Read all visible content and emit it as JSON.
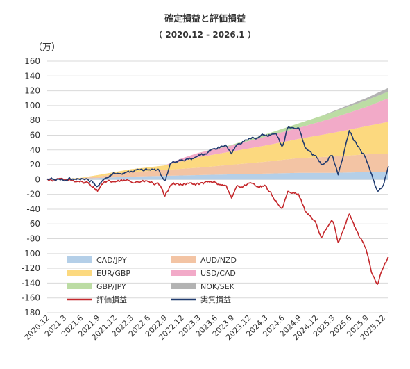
{
  "chart_data": {
    "type": "area",
    "title": "確定損益と評価損益",
    "subtitle": "（ 2020.12 - 2026.1 ）",
    "unit_label": "（万）",
    "ylim": [
      -180,
      160
    ],
    "ytick_step": 20,
    "x_start": "2020.12",
    "x_end": "2026.1",
    "x_ticks": [
      "2020.12",
      "2021.3",
      "2021.6",
      "2021.9",
      "2021.12",
      "2022.3",
      "2022.6",
      "2022.9",
      "2022.12",
      "2023.3",
      "2023.6",
      "2023.9",
      "2023.12",
      "2024.3",
      "2024.6",
      "2024.9",
      "2024.12",
      "2025.3",
      "2025.6",
      "2025.9",
      "2025.12"
    ],
    "grid": true,
    "stacked_order": [
      "CAD/JPY",
      "AUD/NZD",
      "EUR/GBP",
      "USD/CAD",
      "GBP/JPY",
      "NOK/SEK"
    ],
    "series": [
      {
        "name": "CAD/JPY",
        "kind": "area",
        "color": "#b4cfe8",
        "points": [
          [
            "2020.12",
            0
          ],
          [
            "2021.9",
            2
          ],
          [
            "2022.3",
            4
          ],
          [
            "2022.9",
            5
          ],
          [
            "2023.3",
            6
          ],
          [
            "2023.9",
            7
          ],
          [
            "2024.3",
            8
          ],
          [
            "2024.9",
            9
          ],
          [
            "2025.3",
            9
          ],
          [
            "2025.9",
            10
          ],
          [
            "2026.1",
            10
          ]
        ]
      },
      {
        "name": "AUD/NZD",
        "kind": "area",
        "color": "#f3c4a4",
        "points": [
          [
            "2020.12",
            0
          ],
          [
            "2021.6",
            0.5
          ],
          [
            "2021.9",
            2
          ],
          [
            "2022.3",
            6
          ],
          [
            "2022.9",
            8
          ],
          [
            "2023.3",
            10
          ],
          [
            "2023.9",
            13
          ],
          [
            "2024.3",
            16
          ],
          [
            "2024.9",
            20
          ],
          [
            "2025.3",
            22
          ],
          [
            "2025.9",
            24
          ],
          [
            "2026.1",
            25
          ]
        ]
      },
      {
        "name": "EUR/GBP",
        "kind": "area",
        "color": "#fcd97f",
        "points": [
          [
            "2020.12",
            0
          ],
          [
            "2021.6",
            0.5
          ],
          [
            "2021.9",
            2
          ],
          [
            "2022.3",
            4
          ],
          [
            "2022.9",
            6
          ],
          [
            "2022.12",
            10
          ],
          [
            "2023.3",
            14
          ],
          [
            "2023.9",
            18
          ],
          [
            "2024.3",
            22
          ],
          [
            "2024.9",
            26
          ],
          [
            "2025.3",
            32
          ],
          [
            "2025.9",
            38
          ],
          [
            "2026.1",
            43
          ]
        ]
      },
      {
        "name": "USD/CAD",
        "kind": "area",
        "color": "#f2aac8",
        "points": [
          [
            "2020.12",
            0
          ],
          [
            "2022.9",
            0
          ],
          [
            "2022.12",
            4
          ],
          [
            "2023.3",
            6
          ],
          [
            "2023.9",
            8
          ],
          [
            "2024.3",
            12
          ],
          [
            "2024.9",
            15
          ],
          [
            "2025.3",
            20
          ],
          [
            "2025.9",
            26
          ],
          [
            "2026.1",
            32
          ]
        ]
      },
      {
        "name": "GBP/JPY",
        "kind": "area",
        "color": "#bcdca4",
        "points": [
          [
            "2020.12",
            0
          ],
          [
            "2023.3",
            0
          ],
          [
            "2023.9",
            1
          ],
          [
            "2024.3",
            3
          ],
          [
            "2024.9",
            6
          ],
          [
            "2025.3",
            8
          ],
          [
            "2025.9",
            9
          ],
          [
            "2026.1",
            9
          ]
        ]
      },
      {
        "name": "NOK/SEK",
        "kind": "area",
        "color": "#b3b3b3",
        "points": [
          [
            "2020.12",
            0
          ],
          [
            "2025.1",
            0
          ],
          [
            "2025.3",
            1
          ],
          [
            "2025.9",
            3
          ],
          [
            "2026.1",
            5
          ]
        ]
      },
      {
        "name": "評価損益",
        "kind": "line",
        "color": "#c4272b",
        "points": [
          [
            "2020.12",
            0
          ],
          [
            "2021.3",
            -1
          ],
          [
            "2021.6",
            -2
          ],
          [
            "2021.8",
            -8
          ],
          [
            "2021.9",
            -14
          ],
          [
            "2021.10",
            -5
          ],
          [
            "2021.12",
            -3
          ],
          [
            "2022.3",
            -2
          ],
          [
            "2022.6",
            -3
          ],
          [
            "2022.8",
            -8
          ],
          [
            "2022.9",
            -22
          ],
          [
            "2022.10",
            -8
          ],
          [
            "2022.12",
            -5
          ],
          [
            "2023.3",
            -6
          ],
          [
            "2023.6",
            -4
          ],
          [
            "2023.8",
            -9
          ],
          [
            "2023.9",
            -25
          ],
          [
            "2023.10",
            -10
          ],
          [
            "2023.12",
            -6
          ],
          [
            "2024.3",
            -10
          ],
          [
            "2024.5",
            -30
          ],
          [
            "2024.6",
            -40
          ],
          [
            "2024.7",
            -18
          ],
          [
            "2024.9",
            -20
          ],
          [
            "2024.10",
            -40
          ],
          [
            "2024.12",
            -60
          ],
          [
            "2025.1",
            -80
          ],
          [
            "2025.2",
            -65
          ],
          [
            "2025.3",
            -55
          ],
          [
            "2025.4",
            -85
          ],
          [
            "2025.6",
            -45
          ],
          [
            "2025.7",
            -65
          ],
          [
            "2025.9",
            -95
          ],
          [
            "2025.10",
            -125
          ],
          [
            "2025.11",
            -140
          ],
          [
            "2025.12",
            -120
          ],
          [
            "2026.1",
            -105
          ]
        ]
      },
      {
        "name": "実質損益",
        "kind": "line",
        "color": "#1f3a6e",
        "points": [
          [
            "2020.12",
            0
          ],
          [
            "2021.3",
            0
          ],
          [
            "2021.6",
            2
          ],
          [
            "2021.8",
            -3
          ],
          [
            "2021.9",
            -9
          ],
          [
            "2021.10",
            0
          ],
          [
            "2021.12",
            8
          ],
          [
            "2022.3",
            12
          ],
          [
            "2022.6",
            13
          ],
          [
            "2022.8",
            12
          ],
          [
            "2022.9",
            -5
          ],
          [
            "2022.10",
            22
          ],
          [
            "2022.12",
            25
          ],
          [
            "2023.3",
            30
          ],
          [
            "2023.6",
            42
          ],
          [
            "2023.8",
            45
          ],
          [
            "2023.9",
            35
          ],
          [
            "2023.10",
            48
          ],
          [
            "2023.12",
            55
          ],
          [
            "2024.3",
            60
          ],
          [
            "2024.5",
            62
          ],
          [
            "2024.6",
            45
          ],
          [
            "2024.7",
            70
          ],
          [
            "2024.9",
            68
          ],
          [
            "2024.10",
            45
          ],
          [
            "2024.12",
            30
          ],
          [
            "2025.1",
            20
          ],
          [
            "2025.2",
            25
          ],
          [
            "2025.3",
            35
          ],
          [
            "2025.4",
            5
          ],
          [
            "2025.6",
            65
          ],
          [
            "2025.7",
            50
          ],
          [
            "2025.9",
            30
          ],
          [
            "2025.10",
            5
          ],
          [
            "2025.11",
            -18
          ],
          [
            "2025.12",
            -8
          ],
          [
            "2026.1",
            20
          ]
        ]
      }
    ],
    "legend": [
      {
        "name": "CAD/JPY",
        "kind": "area",
        "color": "#b4cfe8"
      },
      {
        "name": "AUD/NZD",
        "kind": "area",
        "color": "#f3c4a4"
      },
      {
        "name": "EUR/GBP",
        "kind": "area",
        "color": "#fcd97f"
      },
      {
        "name": "USD/CAD",
        "kind": "area",
        "color": "#f2aac8"
      },
      {
        "name": "GBP/JPY",
        "kind": "area",
        "color": "#bcdca4"
      },
      {
        "name": "NOK/SEK",
        "kind": "area",
        "color": "#b3b3b3"
      },
      {
        "name": "評価損益",
        "kind": "line",
        "color": "#c4272b"
      },
      {
        "name": "実質損益",
        "kind": "line",
        "color": "#1f3a6e"
      }
    ],
    "legend_placement": "bottom-left"
  }
}
